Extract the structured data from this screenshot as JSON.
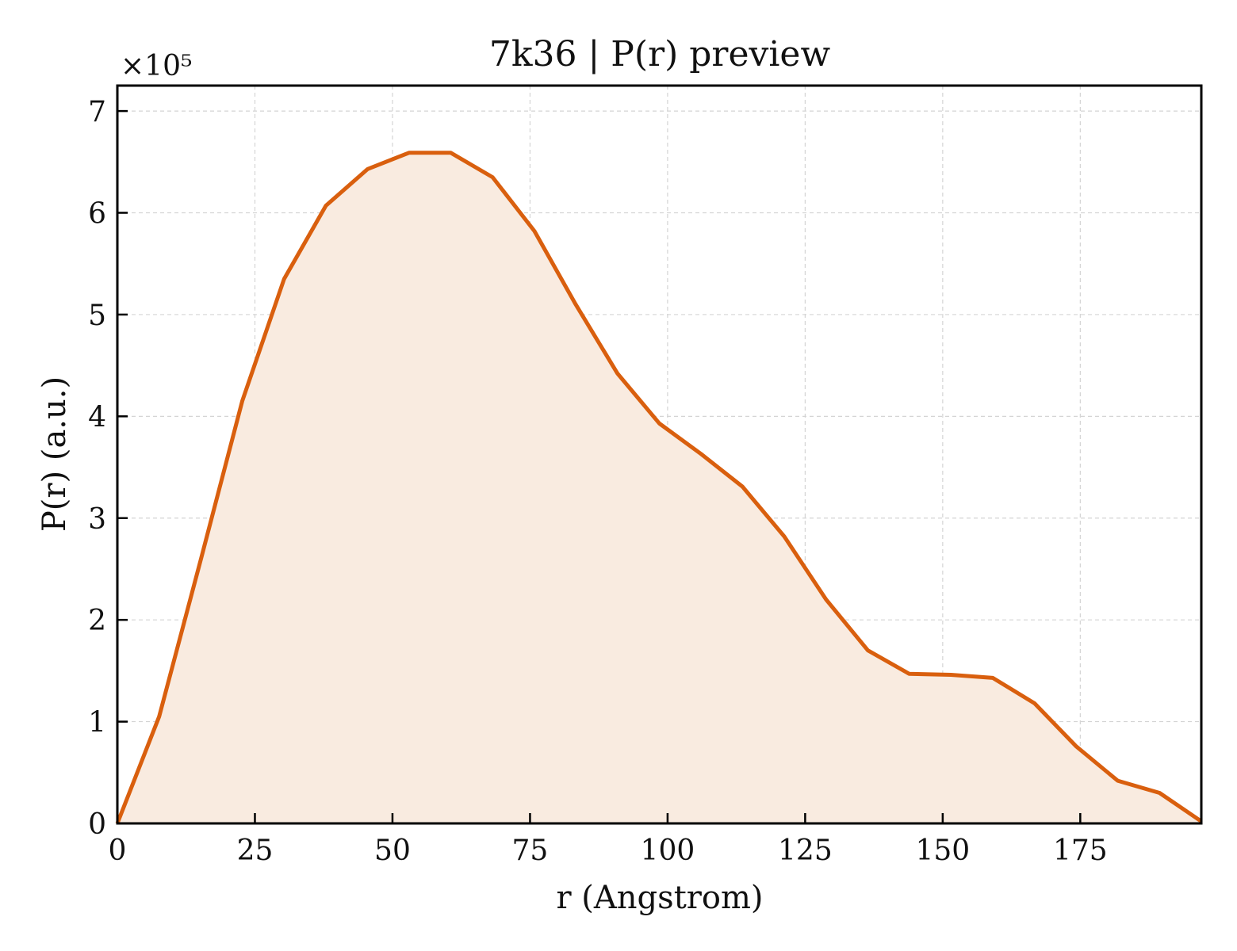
{
  "chart_data": {
    "type": "area",
    "title": "7k36 | P(r) preview",
    "xlabel": "r (Angstrom)",
    "ylabel": "P(r) (a.u.)",
    "y_multiplier_label": "×10⁵",
    "xlim": [
      0,
      197
    ],
    "ylim": [
      0,
      7.25
    ],
    "y_scale_factor": 100000,
    "xticks": [
      0,
      25,
      50,
      75,
      100,
      125,
      150,
      175
    ],
    "yticks": [
      0,
      1,
      2,
      3,
      4,
      5,
      6,
      7
    ],
    "grid": true,
    "line_color": "#d95f0e",
    "fill_color": "#f9ebe0",
    "series": [
      {
        "x": [
          0,
          7.6,
          15.2,
          22.7,
          30.3,
          37.9,
          45.5,
          53.0,
          60.6,
          68.2,
          75.8,
          83.3,
          90.9,
          98.5,
          106.1,
          113.6,
          121.2,
          128.8,
          136.4,
          143.9,
          151.5,
          159.1,
          166.7,
          174.2,
          181.8,
          189.4,
          197.0
        ],
        "y": [
          0,
          1.05,
          2.6,
          4.15,
          5.35,
          6.07,
          6.43,
          6.59,
          6.59,
          6.35,
          5.82,
          5.1,
          4.42,
          3.93,
          3.63,
          3.31,
          2.82,
          2.2,
          1.7,
          1.47,
          1.46,
          1.43,
          1.18,
          0.76,
          0.42,
          0.3,
          0.02
        ]
      }
    ]
  }
}
